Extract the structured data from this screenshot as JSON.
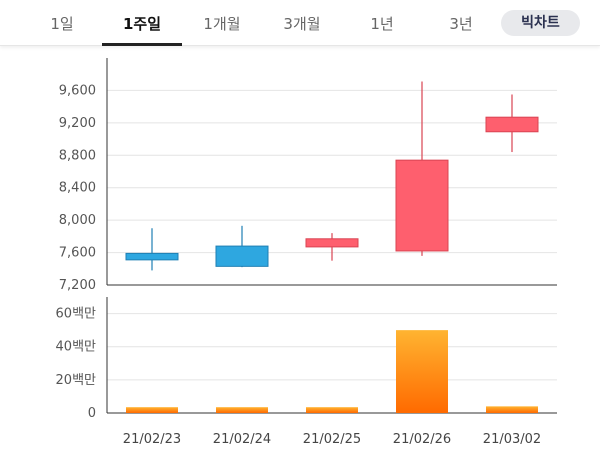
{
  "tabs": [
    {
      "label": "1일",
      "active": false
    },
    {
      "label": "1주일",
      "active": true
    },
    {
      "label": "1개월",
      "active": false
    },
    {
      "label": "3개월",
      "active": false
    },
    {
      "label": "1년",
      "active": false
    },
    {
      "label": "3년",
      "active": false
    }
  ],
  "big_chart_label": "빅차트",
  "colors": {
    "up": "#fe5f6e",
    "down": "#2ea7e0",
    "volume_top": "#ffb431",
    "volume_bottom": "#ff6a00",
    "grid": "#e4e4e4",
    "axis": "#333333"
  },
  "chart_data": [
    {
      "type": "candlestick",
      "title": "",
      "categories": [
        "21/02/23",
        "21/02/24",
        "21/02/25",
        "21/02/26",
        "21/03/02"
      ],
      "open": [
        7590,
        7680,
        7670,
        7620,
        9090
      ],
      "close": [
        7510,
        7430,
        7770,
        8740,
        9270
      ],
      "high": [
        7900,
        7930,
        7840,
        9710,
        9550
      ],
      "low": [
        7380,
        7420,
        7500,
        7560,
        8840
      ],
      "ylim": [
        7200,
        10000
      ],
      "yticks": [
        "9,600",
        "9,200",
        "8,800",
        "8,400",
        "8,000",
        "7,600",
        "7,200"
      ],
      "ytick_values": [
        9600,
        9200,
        8800,
        8400,
        8000,
        7600,
        7200
      ],
      "grid": true
    },
    {
      "type": "bar",
      "title": "",
      "categories": [
        "21/02/23",
        "21/02/24",
        "21/02/25",
        "21/02/26",
        "21/03/02"
      ],
      "values": [
        3.5,
        3.5,
        3.5,
        50,
        4
      ],
      "ylim": [
        0,
        70
      ],
      "yticks": [
        "60백만",
        "40백만",
        "20백만",
        "0"
      ],
      "ytick_values": [
        60,
        40,
        20,
        0
      ],
      "grid": true
    }
  ]
}
